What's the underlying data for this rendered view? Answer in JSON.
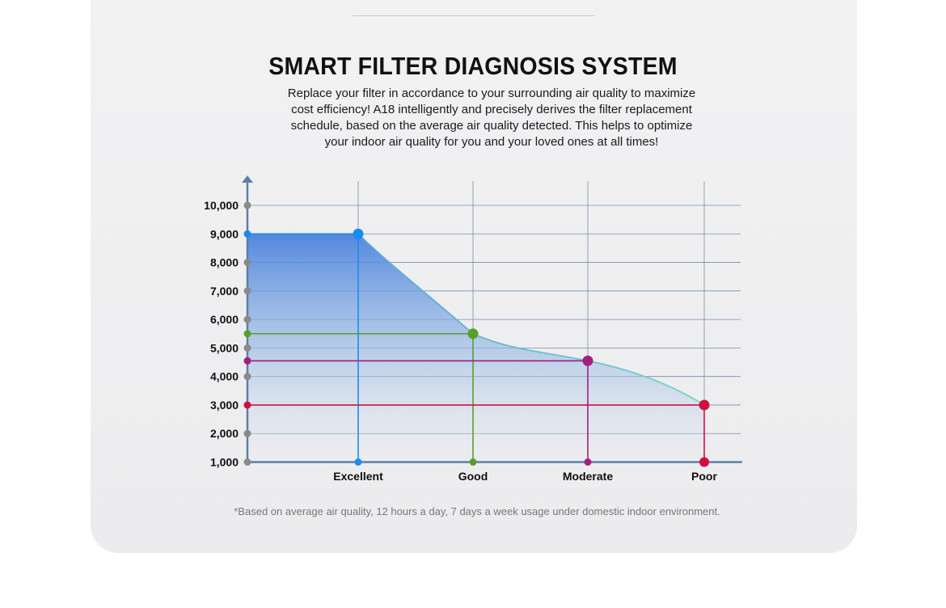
{
  "heading": "SMART FILTER DIAGNOSIS SYSTEM",
  "description_lines": [
    "Replace your filter in accordance to your surrounding air quality to maximize",
    "cost efficiency! A18 intelligently and precisely derives the filter replacement",
    "schedule, based on the average air quality detected. This helps to optimize",
    "your indoor air quality for you and your loved ones at all times!"
  ],
  "footnote": "*Based on average air quality, 12 hours a day, 7 days a week usage under domestic indoor environment.",
  "chart_data": {
    "type": "area",
    "title": "",
    "xlabel": "",
    "ylabel": "",
    "categories": [
      "Excellent",
      "Good",
      "Moderate",
      "Poor"
    ],
    "y_ticks": [
      1000,
      2000,
      3000,
      4000,
      5000,
      6000,
      7000,
      8000,
      9000,
      10000
    ],
    "y_tick_labels": [
      "1,000",
      "2,000",
      "3,000",
      "4,000",
      "5,000",
      "6,000",
      "7,000",
      "8,000",
      "9,000",
      "10,000"
    ],
    "ylim": [
      1000,
      10000
    ],
    "grid": true,
    "points": [
      {
        "category": "Excellent",
        "value": 9000,
        "color": "#1a8cf0"
      },
      {
        "category": "Good",
        "value": 5500,
        "color": "#5a9e2a"
      },
      {
        "category": "Moderate",
        "value": 4550,
        "color": "#a0207c"
      },
      {
        "category": "Poor",
        "value": 3000,
        "color": "#d0103c"
      }
    ],
    "colors": {
      "axis": "#5d7fa4",
      "grid": "#5d7fa4",
      "tick_dot": "#8a8a8a",
      "curve_start": "#5ba8d6",
      "curve_end": "#7fd6c2",
      "fill_top": "#4a82dc"
    }
  }
}
